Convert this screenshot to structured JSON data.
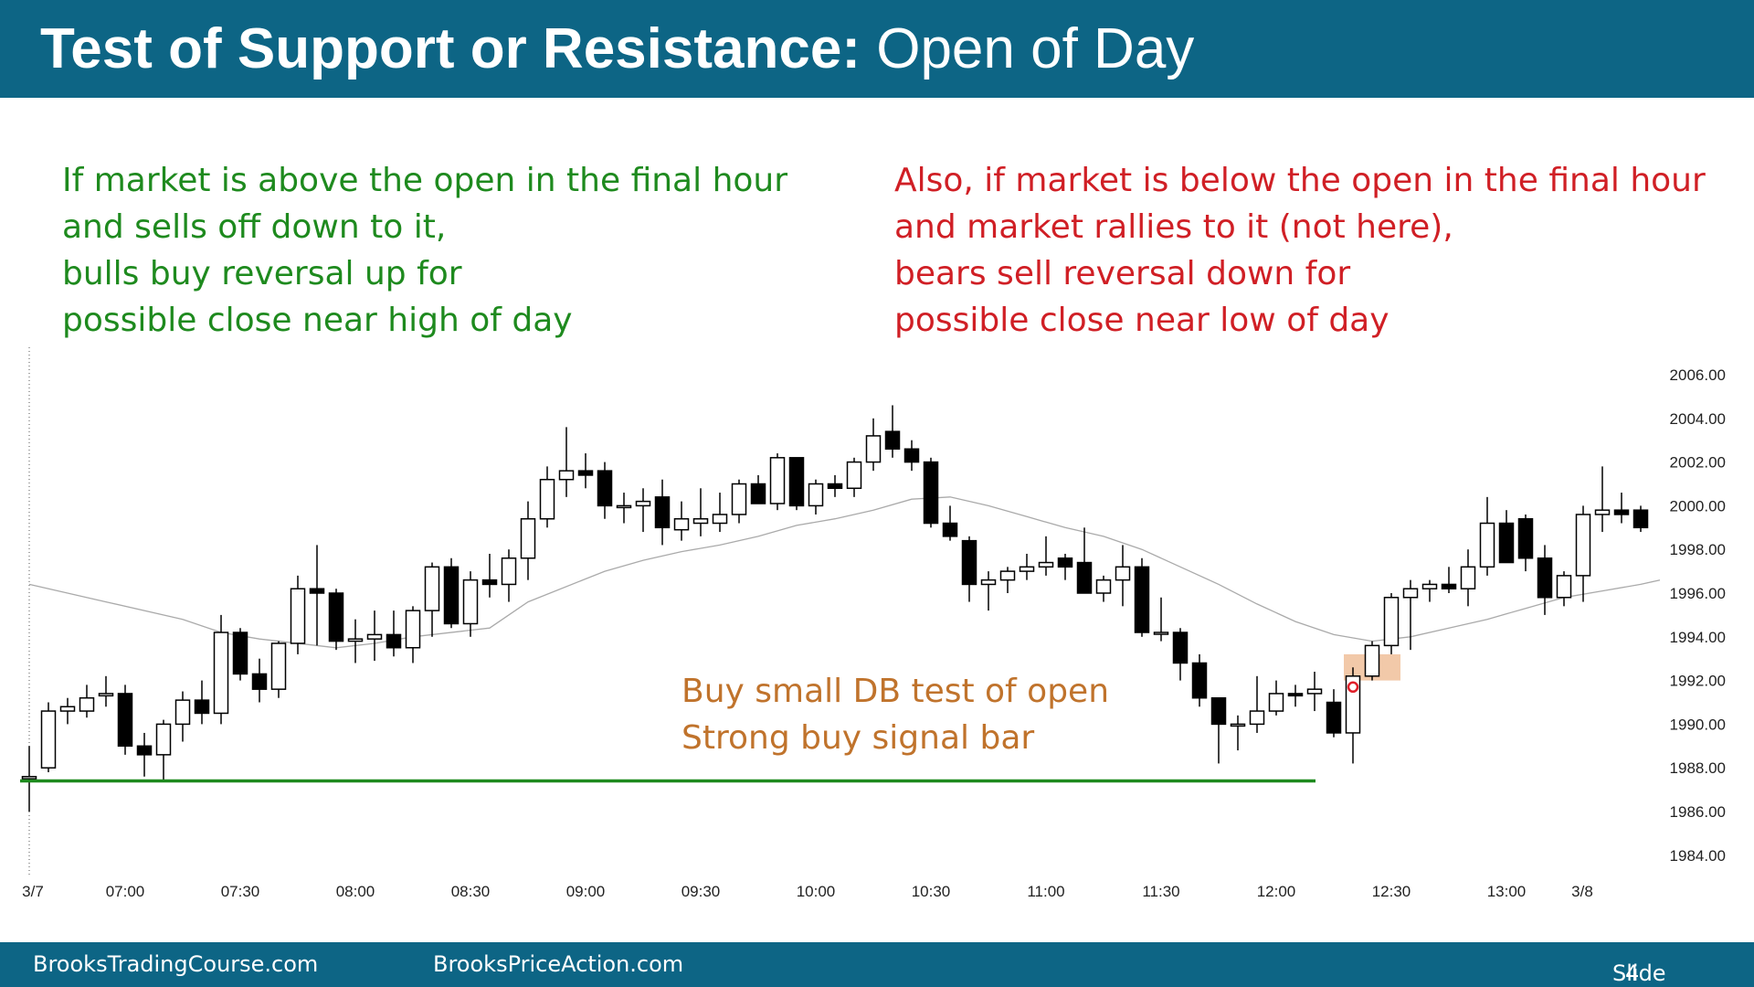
{
  "header": {
    "title_bold": "Test of Support or Resistance:",
    "title_normal": "Open of Day"
  },
  "notes": {
    "left": [
      "If market is above the open in the final hour",
      "and sells off down to it,",
      "bulls buy reversal up for",
      "possible close near high of day"
    ],
    "right": [
      "Also, if market is below the open in the final hour",
      "and market rallies to it (not here),",
      "bears sell reversal down for",
      "possible close near low of day"
    ]
  },
  "footer": {
    "left": "BrooksTradingCourse.com",
    "middle": "BrooksPriceAction.com",
    "slide_label": "Slide",
    "slide_number": "4"
  },
  "colors": {
    "header_bg": "#0d6585",
    "bull_text": "#1e8a1e",
    "bear_text": "#d01f25",
    "annotation_text": "#c0732c",
    "support_line": "#1e8a1e",
    "moving_average": "#aaaaaa",
    "highlight_box": "#f0c09a",
    "signal_marker": "#e0202a"
  },
  "chart_data": {
    "type": "candlestick",
    "title": "",
    "xlabel": "",
    "ylabel": "",
    "x_ticks": [
      "3/7",
      "07:00",
      "07:30",
      "08:00",
      "08:30",
      "09:00",
      "09:30",
      "10:00",
      "10:30",
      "11:00",
      "11:30",
      "12:00",
      "12:30",
      "13:00",
      "3/8"
    ],
    "y_ticks": [
      "2006.00",
      "2004.00",
      "2002.00",
      "2000.00",
      "1998.00",
      "1996.00",
      "1994.00",
      "1992.00",
      "1990.00",
      "1988.00",
      "1986.00",
      "1984.00"
    ],
    "ylim": [
      1983,
      2007
    ],
    "y_axis_side": "right",
    "bar_minutes": 5,
    "start_time": "06:35",
    "candles": [
      {
        "o": 1987.5,
        "h": 1989.0,
        "l": 1986.0,
        "c": 1987.6
      },
      {
        "o": 1988.0,
        "h": 1991.0,
        "l": 1987.8,
        "c": 1990.6
      },
      {
        "o": 1990.6,
        "h": 1991.2,
        "l": 1990.0,
        "c": 1990.8
      },
      {
        "o": 1990.6,
        "h": 1991.8,
        "l": 1990.3,
        "c": 1991.2
      },
      {
        "o": 1991.3,
        "h": 1992.2,
        "l": 1990.8,
        "c": 1991.4
      },
      {
        "o": 1991.4,
        "h": 1991.8,
        "l": 1988.6,
        "c": 1989.0
      },
      {
        "o": 1989.0,
        "h": 1989.6,
        "l": 1987.6,
        "c": 1988.6
      },
      {
        "o": 1988.6,
        "h": 1990.2,
        "l": 1987.4,
        "c": 1990.0
      },
      {
        "o": 1990.0,
        "h": 1991.5,
        "l": 1989.2,
        "c": 1991.1
      },
      {
        "o": 1991.1,
        "h": 1992.0,
        "l": 1990.0,
        "c": 1990.5
      },
      {
        "o": 1990.5,
        "h": 1995.0,
        "l": 1990.0,
        "c": 1994.2
      },
      {
        "o": 1994.2,
        "h": 1994.4,
        "l": 1992.0,
        "c": 1992.3
      },
      {
        "o": 1992.3,
        "h": 1993.0,
        "l": 1991.0,
        "c": 1991.6
      },
      {
        "o": 1991.6,
        "h": 1993.8,
        "l": 1991.2,
        "c": 1993.7
      },
      {
        "o": 1993.7,
        "h": 1996.8,
        "l": 1993.2,
        "c": 1996.2
      },
      {
        "o": 1996.2,
        "h": 1998.2,
        "l": 1993.6,
        "c": 1996.0
      },
      {
        "o": 1996.0,
        "h": 1996.2,
        "l": 1993.4,
        "c": 1993.8
      },
      {
        "o": 1993.8,
        "h": 1994.8,
        "l": 1992.8,
        "c": 1993.9
      },
      {
        "o": 1993.9,
        "h": 1995.2,
        "l": 1992.9,
        "c": 1994.1
      },
      {
        "o": 1994.1,
        "h": 1995.2,
        "l": 1993.1,
        "c": 1993.5
      },
      {
        "o": 1993.5,
        "h": 1995.4,
        "l": 1992.8,
        "c": 1995.2
      },
      {
        "o": 1995.2,
        "h": 1997.4,
        "l": 1994.0,
        "c": 1997.2
      },
      {
        "o": 1997.2,
        "h": 1997.6,
        "l": 1994.4,
        "c": 1994.6
      },
      {
        "o": 1994.6,
        "h": 1997.0,
        "l": 1994.0,
        "c": 1996.6
      },
      {
        "o": 1996.6,
        "h": 1997.8,
        "l": 1995.8,
        "c": 1996.4
      },
      {
        "o": 1996.4,
        "h": 1998.0,
        "l": 1995.6,
        "c": 1997.6
      },
      {
        "o": 1997.6,
        "h": 2000.2,
        "l": 1996.6,
        "c": 1999.4
      },
      {
        "o": 1999.4,
        "h": 2001.8,
        "l": 1999.0,
        "c": 2001.2
      },
      {
        "o": 2001.2,
        "h": 2003.6,
        "l": 2000.4,
        "c": 2001.6
      },
      {
        "o": 2001.6,
        "h": 2002.4,
        "l": 2000.8,
        "c": 2001.4
      },
      {
        "o": 2001.6,
        "h": 2002.0,
        "l": 1999.4,
        "c": 2000.0
      },
      {
        "o": 2000.0,
        "h": 2000.6,
        "l": 1999.2,
        "c": 2000.0
      },
      {
        "o": 2000.0,
        "h": 2000.8,
        "l": 1998.8,
        "c": 2000.2
      },
      {
        "o": 2000.4,
        "h": 2001.2,
        "l": 1998.2,
        "c": 1999.0
      },
      {
        "o": 1998.9,
        "h": 2000.2,
        "l": 1998.4,
        "c": 1999.4
      },
      {
        "o": 1999.2,
        "h": 2000.8,
        "l": 1998.6,
        "c": 1999.4
      },
      {
        "o": 1999.2,
        "h": 2000.6,
        "l": 1998.8,
        "c": 1999.6
      },
      {
        "o": 1999.6,
        "h": 2001.2,
        "l": 1999.2,
        "c": 2001.0
      },
      {
        "o": 2001.0,
        "h": 2001.4,
        "l": 2000.2,
        "c": 2000.1
      },
      {
        "o": 2000.1,
        "h": 2002.4,
        "l": 1999.8,
        "c": 2002.2
      },
      {
        "o": 2002.2,
        "h": 2002.2,
        "l": 1999.8,
        "c": 2000.0
      },
      {
        "o": 2000.0,
        "h": 2001.2,
        "l": 1999.6,
        "c": 2001.0
      },
      {
        "o": 2001.0,
        "h": 2001.4,
        "l": 2000.4,
        "c": 2000.8
      },
      {
        "o": 2000.8,
        "h": 2002.2,
        "l": 2000.4,
        "c": 2002.0
      },
      {
        "o": 2002.0,
        "h": 2004.0,
        "l": 2001.6,
        "c": 2003.2
      },
      {
        "o": 2003.4,
        "h": 2004.6,
        "l": 2002.2,
        "c": 2002.6
      },
      {
        "o": 2002.6,
        "h": 2003.0,
        "l": 2001.6,
        "c": 2002.0
      },
      {
        "o": 2002.0,
        "h": 2002.2,
        "l": 1999.0,
        "c": 1999.2
      },
      {
        "o": 1999.2,
        "h": 2000.0,
        "l": 1998.4,
        "c": 1998.6
      },
      {
        "o": 1998.4,
        "h": 1998.6,
        "l": 1995.6,
        "c": 1996.4
      },
      {
        "o": 1996.4,
        "h": 1997.0,
        "l": 1995.2,
        "c": 1996.6
      },
      {
        "o": 1996.6,
        "h": 1997.2,
        "l": 1996.0,
        "c": 1997.0
      },
      {
        "o": 1997.0,
        "h": 1997.8,
        "l": 1996.6,
        "c": 1997.2
      },
      {
        "o": 1997.2,
        "h": 1998.6,
        "l": 1996.8,
        "c": 1997.4
      },
      {
        "o": 1997.6,
        "h": 1997.8,
        "l": 1996.6,
        "c": 1997.2
      },
      {
        "o": 1997.4,
        "h": 1999.0,
        "l": 1996.0,
        "c": 1996.0
      },
      {
        "o": 1996.0,
        "h": 1996.8,
        "l": 1995.6,
        "c": 1996.6
      },
      {
        "o": 1996.6,
        "h": 1998.2,
        "l": 1995.4,
        "c": 1997.2
      },
      {
        "o": 1997.2,
        "h": 1997.6,
        "l": 1994.0,
        "c": 1994.2
      },
      {
        "o": 1994.2,
        "h": 1995.8,
        "l": 1993.8,
        "c": 1994.2
      },
      {
        "o": 1994.2,
        "h": 1994.4,
        "l": 1992.0,
        "c": 1992.8
      },
      {
        "o": 1992.8,
        "h": 1993.2,
        "l": 1990.8,
        "c": 1991.2
      },
      {
        "o": 1991.2,
        "h": 1991.2,
        "l": 1988.2,
        "c": 1990.0
      },
      {
        "o": 1990.0,
        "h": 1990.4,
        "l": 1988.8,
        "c": 1990.0
      },
      {
        "o": 1990.0,
        "h": 1992.2,
        "l": 1989.6,
        "c": 1990.6
      },
      {
        "o": 1990.6,
        "h": 1992.0,
        "l": 1990.4,
        "c": 1991.4
      },
      {
        "o": 1991.4,
        "h": 1991.8,
        "l": 1990.8,
        "c": 1991.3
      },
      {
        "o": 1991.4,
        "h": 1992.4,
        "l": 1990.6,
        "c": 1991.6
      },
      {
        "o": 1991.0,
        "h": 1991.6,
        "l": 1989.4,
        "c": 1989.6
      },
      {
        "o": 1989.6,
        "h": 1992.6,
        "l": 1988.2,
        "c": 1992.2
      },
      {
        "o": 1992.2,
        "h": 1993.8,
        "l": 1992.0,
        "c": 1993.6
      },
      {
        "o": 1993.6,
        "h": 1996.0,
        "l": 1993.2,
        "c": 1995.8
      },
      {
        "o": 1995.8,
        "h": 1996.6,
        "l": 1993.4,
        "c": 1996.2
      },
      {
        "o": 1996.2,
        "h": 1996.6,
        "l": 1995.6,
        "c": 1996.4
      },
      {
        "o": 1996.4,
        "h": 1997.2,
        "l": 1996.0,
        "c": 1996.2
      },
      {
        "o": 1996.2,
        "h": 1998.0,
        "l": 1995.4,
        "c": 1997.2
      },
      {
        "o": 1997.2,
        "h": 2000.4,
        "l": 1996.8,
        "c": 1999.2
      },
      {
        "o": 1999.2,
        "h": 1999.8,
        "l": 1997.4,
        "c": 1997.4
      },
      {
        "o": 1999.4,
        "h": 1999.6,
        "l": 1997.0,
        "c": 1997.6
      },
      {
        "o": 1997.6,
        "h": 1998.2,
        "l": 1995.0,
        "c": 1995.8
      },
      {
        "o": 1995.8,
        "h": 1997.0,
        "l": 1995.4,
        "c": 1996.8
      },
      {
        "o": 1996.8,
        "h": 2000.0,
        "l": 1995.6,
        "c": 1999.6
      },
      {
        "o": 1999.6,
        "h": 2001.8,
        "l": 1998.8,
        "c": 1999.8
      },
      {
        "o": 1999.8,
        "h": 2000.6,
        "l": 1999.2,
        "c": 1999.6
      },
      {
        "o": 1999.8,
        "h": 2000.0,
        "l": 1998.8,
        "c": 1999.0
      }
    ],
    "moving_average": [
      [
        0,
        1996.4
      ],
      [
        4,
        1995.6
      ],
      [
        8,
        1994.8
      ],
      [
        10,
        1994.2
      ],
      [
        12,
        1993.9
      ],
      [
        16,
        1993.5
      ],
      [
        18,
        1993.7
      ],
      [
        20,
        1994.0
      ],
      [
        24,
        1994.4
      ],
      [
        26,
        1995.6
      ],
      [
        30,
        1997.0
      ],
      [
        32,
        1997.5
      ],
      [
        34,
        1997.9
      ],
      [
        36,
        1998.2
      ],
      [
        38,
        1998.6
      ],
      [
        40,
        1999.1
      ],
      [
        42,
        1999.4
      ],
      [
        44,
        1999.8
      ],
      [
        46,
        2000.3
      ],
      [
        48,
        2000.4
      ],
      [
        50,
        2000.0
      ],
      [
        52,
        1999.5
      ],
      [
        54,
        1999.0
      ],
      [
        56,
        1998.6
      ],
      [
        58,
        1998.0
      ],
      [
        60,
        1997.2
      ],
      [
        62,
        1996.4
      ],
      [
        64,
        1995.5
      ],
      [
        66,
        1994.7
      ],
      [
        68,
        1994.1
      ],
      [
        70,
        1993.8
      ],
      [
        72,
        1994.0
      ],
      [
        74,
        1994.4
      ],
      [
        76,
        1994.8
      ],
      [
        78,
        1995.3
      ],
      [
        80,
        1995.8
      ],
      [
        82,
        1996.1
      ],
      [
        84,
        1996.4
      ],
      [
        85,
        1996.6
      ]
    ],
    "support_line": {
      "value": 1987.4,
      "label": "open of day"
    },
    "highlight_box": {
      "bar_start": 69,
      "bar_end": 71,
      "y_low": 1992.0,
      "y_high": 1993.2
    },
    "signal_bar_index": 69,
    "annotation": {
      "lines": [
        "Buy small DB test of open",
        "Strong buy signal bar"
      ]
    }
  }
}
